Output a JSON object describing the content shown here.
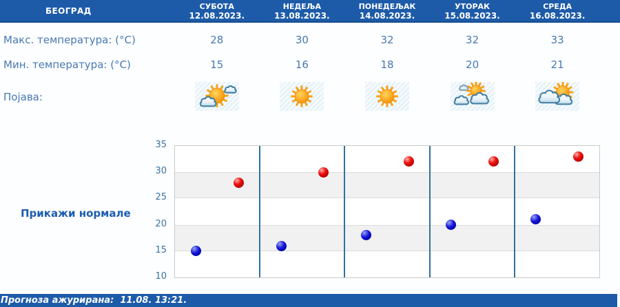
{
  "header": {
    "location": "БЕОГРАД",
    "days": [
      {
        "name": "СУБОТА",
        "date": "12.08.2023."
      },
      {
        "name": "НЕДЕЉА",
        "date": "13.08.2023."
      },
      {
        "name": "ПОНЕДЕЉАК",
        "date": "14.08.2023."
      },
      {
        "name": "УТОРАК",
        "date": "15.08.2023."
      },
      {
        "name": "СРЕДА",
        "date": "16.08.2023."
      }
    ]
  },
  "rows": {
    "max_label": "Макс. температура: (°C)",
    "min_label": "Мин. температура: (°C)",
    "phenomenon_label": "Појава:",
    "max_values": [
      "28",
      "30",
      "32",
      "32",
      "33"
    ],
    "min_values": [
      "15",
      "16",
      "18",
      "20",
      "21"
    ],
    "icons": [
      "sun-with-clouds",
      "sunny",
      "sunny",
      "clouds-with-sun",
      "sun-behind-clouds"
    ]
  },
  "normals_button_label": "Прикажи нормале",
  "footer": {
    "updated_text": "Прогноза ажурирана:  11.08. 13:21."
  },
  "colors": {
    "bar_blue": "#1d5ba8",
    "text_blue": "#4678b2",
    "max_dot": "#cc1111",
    "min_dot": "#1111bb",
    "separator": "#31719b",
    "band_gray": "#f1f1f1"
  },
  "chart_data": {
    "type": "scatter",
    "x": [
      "12.08.2023.",
      "13.08.2023.",
      "14.08.2023.",
      "15.08.2023.",
      "16.08.2023."
    ],
    "series": [
      {
        "name": "Макс. температура (°C)",
        "color": "#cc1111",
        "values": [
          28,
          30,
          32,
          32,
          33
        ]
      },
      {
        "name": "Мин. температура (°C)",
        "color": "#1111bb",
        "values": [
          15,
          16,
          18,
          20,
          21
        ]
      }
    ],
    "ylim": [
      10,
      35
    ],
    "yticks": [
      10,
      15,
      20,
      25,
      30,
      35
    ],
    "xlabel": "",
    "ylabel": "",
    "grid": "horizontal-bands-alternating",
    "legend": "none"
  }
}
